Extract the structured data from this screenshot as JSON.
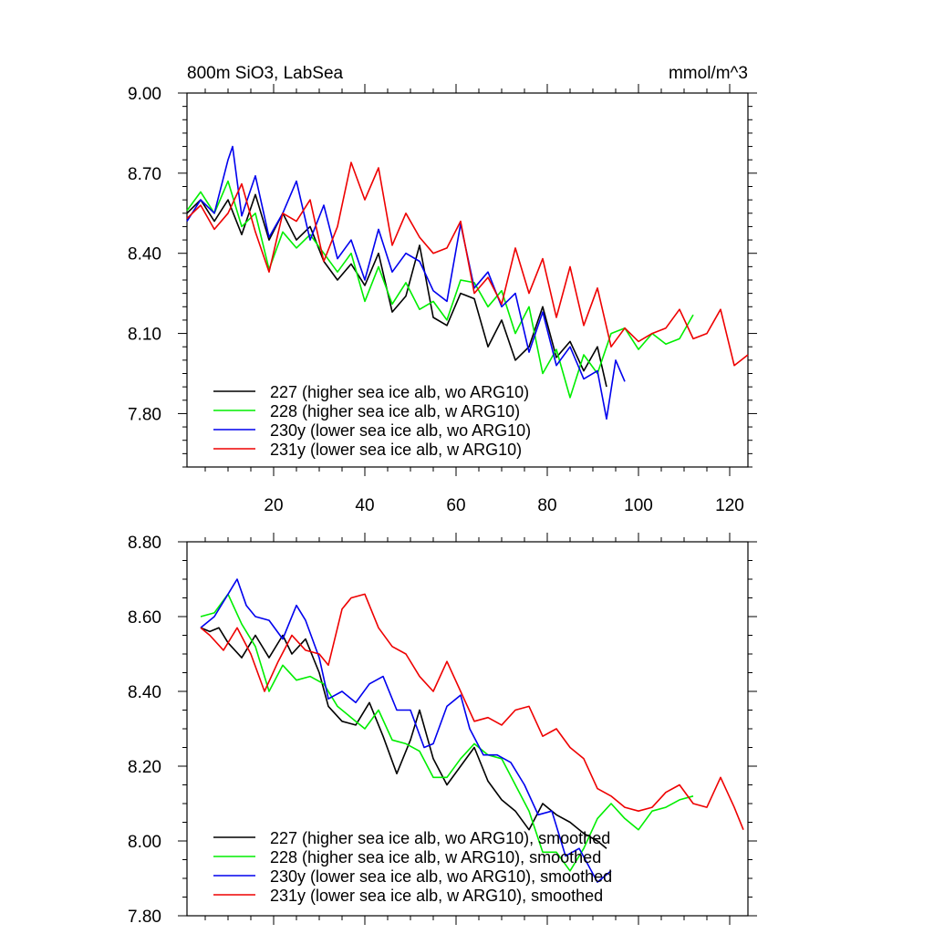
{
  "chart_data": [
    {
      "type": "line",
      "title": "800m SiO3, LabSea",
      "units": "mmol/m^3",
      "xlabel": "",
      "ylabel": "",
      "xlim": [
        1,
        124
      ],
      "ylim": [
        7.6,
        9.0
      ],
      "x_ticks": [
        20,
        40,
        60,
        80,
        100,
        120
      ],
      "x_tick_labels": [
        "20",
        "40",
        "60",
        "80",
        "100",
        "120"
      ],
      "y_ticks": [
        7.8,
        8.1,
        8.4,
        8.7,
        9.0
      ],
      "y_tick_labels": [
        "7.80",
        "8.10",
        "8.40",
        "8.70",
        "9.00"
      ],
      "legend_position": "bottom-left",
      "series": [
        {
          "name": "227 (higher sea ice alb, wo ARG10)",
          "color": "#000000",
          "x": [
            1,
            4,
            7,
            10,
            13,
            16,
            19,
            22,
            25,
            28,
            31,
            34,
            37,
            40,
            43,
            46,
            49,
            52,
            55,
            58,
            61,
            64,
            67,
            70,
            73,
            76,
            79,
            82,
            85,
            88,
            91,
            93
          ],
          "values": [
            8.55,
            8.6,
            8.52,
            8.6,
            8.47,
            8.62,
            8.45,
            8.55,
            8.45,
            8.5,
            8.37,
            8.3,
            8.36,
            8.28,
            8.4,
            8.18,
            8.24,
            8.43,
            8.16,
            8.13,
            8.25,
            8.23,
            8.05,
            8.15,
            8.0,
            8.05,
            8.2,
            8.01,
            8.07,
            7.96,
            8.05,
            7.9
          ]
        },
        {
          "name": "228 (higher sea ice alb, w ARG10)",
          "color": "#00ee00",
          "x": [
            1,
            4,
            7,
            10,
            13,
            16,
            19,
            22,
            25,
            28,
            31,
            34,
            37,
            40,
            43,
            46,
            49,
            52,
            55,
            58,
            61,
            64,
            67,
            70,
            73,
            76,
            79,
            82,
            85,
            88,
            91,
            94,
            97,
            100,
            103,
            106,
            109,
            112
          ],
          "values": [
            8.56,
            8.63,
            8.55,
            8.67,
            8.5,
            8.55,
            8.34,
            8.48,
            8.42,
            8.47,
            8.4,
            8.33,
            8.4,
            8.22,
            8.35,
            8.21,
            8.29,
            8.19,
            8.22,
            8.15,
            8.3,
            8.29,
            8.2,
            8.26,
            8.1,
            8.2,
            7.95,
            8.04,
            7.86,
            8.02,
            7.95,
            8.1,
            8.12,
            8.04,
            8.1,
            8.06,
            8.08,
            8.17
          ]
        },
        {
          "name": "230y (lower sea ice alb, wo ARG10)",
          "color": "#0000ee",
          "x": [
            1,
            4,
            7,
            10,
            11,
            13,
            16,
            19,
            22,
            25,
            28,
            31,
            34,
            37,
            40,
            43,
            46,
            49,
            52,
            55,
            58,
            61,
            64,
            67,
            70,
            73,
            76,
            79,
            82,
            85,
            88,
            91,
            93,
            95,
            97
          ],
          "values": [
            8.52,
            8.6,
            8.55,
            8.75,
            8.8,
            8.54,
            8.69,
            8.46,
            8.55,
            8.67,
            8.45,
            8.58,
            8.38,
            8.45,
            8.3,
            8.49,
            8.33,
            8.4,
            8.37,
            8.26,
            8.22,
            8.51,
            8.27,
            8.33,
            8.2,
            8.25,
            8.03,
            8.18,
            7.98,
            8.05,
            7.93,
            7.96,
            7.78,
            8.0,
            7.92
          ]
        },
        {
          "name": "231y (lower sea ice alb, w ARG10)",
          "color": "#ee0000",
          "x": [
            1,
            4,
            7,
            10,
            13,
            16,
            19,
            22,
            25,
            28,
            31,
            34,
            37,
            40,
            43,
            46,
            49,
            52,
            55,
            58,
            61,
            64,
            67,
            70,
            73,
            76,
            79,
            82,
            85,
            88,
            91,
            94,
            97,
            100,
            103,
            106,
            109,
            112,
            115,
            118,
            121,
            124
          ],
          "values": [
            8.53,
            8.58,
            8.49,
            8.55,
            8.66,
            8.48,
            8.33,
            8.55,
            8.52,
            8.6,
            8.37,
            8.5,
            8.74,
            8.6,
            8.72,
            8.43,
            8.55,
            8.46,
            8.4,
            8.42,
            8.52,
            8.25,
            8.31,
            8.21,
            8.42,
            8.25,
            8.38,
            8.16,
            8.35,
            8.13,
            8.27,
            8.05,
            8.12,
            8.07,
            8.1,
            8.12,
            8.19,
            8.08,
            8.1,
            8.19,
            7.98,
            8.02
          ]
        }
      ]
    },
    {
      "type": "line",
      "title": "",
      "xlabel": "",
      "ylabel": "",
      "xlim": [
        1,
        124
      ],
      "ylim": [
        7.8,
        8.8
      ],
      "x_ticks": [
        20,
        40,
        60,
        80,
        100,
        120
      ],
      "x_tick_labels": [],
      "y_ticks": [
        7.8,
        8.0,
        8.2,
        8.4,
        8.6,
        8.8
      ],
      "y_tick_labels": [
        "7.80",
        "8.00",
        "8.20",
        "8.40",
        "8.60",
        "8.80"
      ],
      "legend_position": "bottom-left",
      "series": [
        {
          "name": "227 (higher sea ice alb, wo ARG10), smoothed",
          "color": "#000000",
          "x": [
            4,
            6,
            8,
            10,
            13,
            16,
            19,
            22,
            24,
            27,
            30,
            32,
            35,
            38,
            41,
            44,
            47,
            50,
            52,
            55,
            58,
            61,
            64,
            67,
            70,
            73,
            76,
            79,
            82,
            85,
            88,
            91,
            93
          ],
          "values": [
            8.57,
            8.56,
            8.57,
            8.53,
            8.49,
            8.55,
            8.49,
            8.55,
            8.5,
            8.54,
            8.45,
            8.36,
            8.32,
            8.31,
            8.37,
            8.28,
            8.18,
            8.27,
            8.35,
            8.22,
            8.15,
            8.2,
            8.25,
            8.16,
            8.11,
            8.08,
            8.03,
            8.1,
            8.07,
            8.05,
            8.02,
            8.0,
            7.98
          ]
        },
        {
          "name": "228 (higher sea ice alb, w ARG10), smoothed",
          "color": "#00ee00",
          "x": [
            4,
            7,
            10,
            13,
            16,
            19,
            22,
            25,
            28,
            31,
            34,
            37,
            40,
            43,
            46,
            49,
            52,
            55,
            58,
            61,
            64,
            67,
            70,
            73,
            76,
            79,
            82,
            85,
            88,
            91,
            94,
            97,
            100,
            103,
            106,
            109,
            112
          ],
          "values": [
            8.6,
            8.61,
            8.66,
            8.58,
            8.52,
            8.4,
            8.47,
            8.43,
            8.44,
            8.42,
            8.36,
            8.33,
            8.3,
            8.35,
            8.27,
            8.26,
            8.24,
            8.17,
            8.17,
            8.22,
            8.26,
            8.23,
            8.22,
            8.15,
            8.08,
            7.97,
            7.97,
            7.92,
            7.98,
            8.06,
            8.1,
            8.06,
            8.03,
            8.08,
            8.09,
            8.11,
            8.12
          ]
        },
        {
          "name": "230y (lower sea ice alb, wo ARG10), smoothed",
          "color": "#0000ee",
          "x": [
            4,
            7,
            10,
            12,
            14,
            16,
            19,
            22,
            25,
            27,
            30,
            32,
            35,
            38,
            41,
            44,
            47,
            50,
            53,
            55,
            58,
            61,
            63,
            66,
            69,
            72,
            75,
            78,
            81,
            84,
            87,
            91,
            94
          ],
          "values": [
            8.57,
            8.6,
            8.66,
            8.7,
            8.63,
            8.6,
            8.59,
            8.54,
            8.63,
            8.59,
            8.49,
            8.38,
            8.4,
            8.37,
            8.42,
            8.44,
            8.35,
            8.35,
            8.25,
            8.26,
            8.36,
            8.39,
            8.3,
            8.23,
            8.23,
            8.21,
            8.15,
            8.07,
            8.08,
            7.96,
            7.98,
            7.89,
            7.92
          ]
        },
        {
          "name": "231y (lower sea ice alb, w ARG10), smoothed",
          "color": "#ee0000",
          "x": [
            4,
            6,
            9,
            12,
            15,
            18,
            21,
            24,
            27,
            30,
            32,
            35,
            37,
            40,
            43,
            46,
            49,
            52,
            55,
            58,
            61,
            64,
            67,
            70,
            73,
            76,
            79,
            82,
            85,
            88,
            91,
            94,
            97,
            100,
            103,
            106,
            109,
            112,
            115,
            118,
            121,
            123
          ],
          "values": [
            8.57,
            8.55,
            8.51,
            8.57,
            8.5,
            8.4,
            8.48,
            8.55,
            8.51,
            8.5,
            8.47,
            8.62,
            8.65,
            8.66,
            8.57,
            8.52,
            8.5,
            8.44,
            8.4,
            8.48,
            8.4,
            8.32,
            8.33,
            8.31,
            8.35,
            8.36,
            8.28,
            8.3,
            8.25,
            8.22,
            8.14,
            8.12,
            8.09,
            8.08,
            8.09,
            8.13,
            8.15,
            8.1,
            8.09,
            8.17,
            8.09,
            8.03
          ]
        }
      ]
    }
  ]
}
